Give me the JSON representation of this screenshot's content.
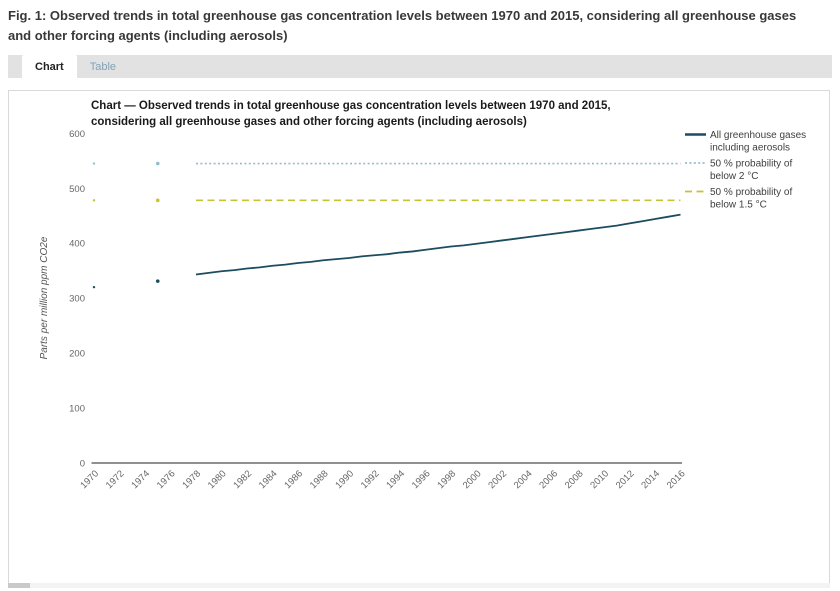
{
  "figure": {
    "caption": "Fig. 1: Observed trends in total greenhouse gas concentration levels between 1970 and 2015, considering all greenhouse gases and other forcing agents (including aerosols)"
  },
  "tabs": {
    "chart": "Chart",
    "table": "Table"
  },
  "colors": {
    "main_series": "#1c4c60",
    "threshold_2c": "#92bdd0",
    "threshold_15c": "#c6c433",
    "axis": "#4d4d4d",
    "tab_strip": "#e2e2e2"
  },
  "chart_data": {
    "type": "line",
    "title": "Chart — Observed trends in total greenhouse gas concentration levels between 1970 and 2015, considering all greenhouse gases and other forcing agents (including aerosols)",
    "xlabel": "",
    "ylabel": "Parts per million ppm CO2e",
    "ylim": [
      0,
      600
    ],
    "yticks": [
      0,
      100,
      200,
      300,
      400,
      500,
      600
    ],
    "xlim": [
      1970,
      2016
    ],
    "xticks": [
      1970,
      1972,
      1974,
      1976,
      1978,
      1980,
      1982,
      1984,
      1986,
      1988,
      1990,
      1992,
      1994,
      1996,
      1998,
      2000,
      2002,
      2004,
      2006,
      2008,
      2010,
      2012,
      2014,
      2016
    ],
    "grid": false,
    "legend_position": "right",
    "series": [
      {
        "name": "All greenhouse gases including aerosols",
        "legend": [
          "All greenhouse gases",
          "including aerosols"
        ],
        "color": "#1c4c60",
        "style": "solid",
        "isolated_points": [
          [
            1970,
            320
          ],
          [
            1975,
            331
          ]
        ],
        "x": [
          1978,
          1979,
          1980,
          1981,
          1982,
          1983,
          1984,
          1985,
          1986,
          1987,
          1988,
          1989,
          1990,
          1991,
          1992,
          1993,
          1994,
          1995,
          1996,
          1997,
          1998,
          1999,
          2000,
          2001,
          2002,
          2003,
          2004,
          2005,
          2006,
          2007,
          2008,
          2009,
          2010,
          2011,
          2012,
          2013,
          2014,
          2015,
          2016
        ],
        "values": [
          343,
          346,
          349,
          351,
          354,
          356,
          359,
          361,
          364,
          366,
          369,
          371,
          373,
          376,
          378,
          380,
          383,
          385,
          388,
          391,
          394,
          396,
          399,
          402,
          405,
          408,
          411,
          414,
          417,
          420,
          423,
          426,
          429,
          432,
          436,
          440,
          444,
          448,
          452
        ]
      },
      {
        "name": "50 % probability of below 2 °C",
        "legend": [
          "50 % probability of",
          "below 2 °C"
        ],
        "color": "#92bdd0",
        "style": "dotted",
        "isolated_points": [
          [
            1970,
            545
          ],
          [
            1975,
            545
          ]
        ],
        "x": [
          1978,
          2016
        ],
        "values": [
          545,
          545
        ]
      },
      {
        "name": "50 % probability of below 1.5 °C",
        "legend": [
          "50 % probability of",
          "below 1.5 °C"
        ],
        "color": "#c6c433",
        "style": "dashed",
        "isolated_points": [
          [
            1970,
            478
          ],
          [
            1975,
            478
          ]
        ],
        "x": [
          1978,
          2016
        ],
        "values": [
          478,
          478
        ]
      }
    ]
  }
}
